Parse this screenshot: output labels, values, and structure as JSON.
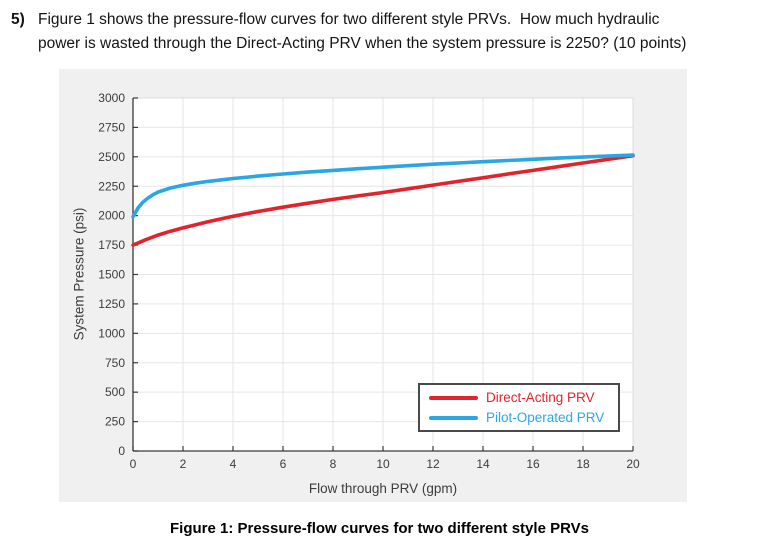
{
  "problem": {
    "number": "5)",
    "line1": "Figure 1 shows the pressure-flow curves for two different style PRVs.  How much hydraulic",
    "line2": "power is wasted through the Direct-Acting PRV when the system pressure is 2250? (10 points)"
  },
  "figure_caption": "Figure 1: Pressure-flow curves for two different style PRVs",
  "chart_data": {
    "type": "line",
    "title": "",
    "xlabel": "Flow through PRV (gpm)",
    "ylabel": "System Pressure (psi)",
    "xlim": [
      0,
      20
    ],
    "ylim": [
      0,
      3000
    ],
    "xticks": [
      0,
      2,
      4,
      6,
      8,
      10,
      12,
      14,
      16,
      18,
      20
    ],
    "yticks": [
      0,
      250,
      500,
      750,
      1000,
      1250,
      1500,
      1750,
      2000,
      2250,
      2500,
      2750,
      3000
    ],
    "grid": true,
    "legend_position": "lower-right",
    "colors": {
      "figure_background": "#F0F0F0",
      "plot_background": "#FFFFFF",
      "grid": "#E6E6E6",
      "axis": "#3A3A3A",
      "box_light": "#DCDCDC",
      "tick_label": "#3D3D3D",
      "legend_border": "#4A4A4A"
    },
    "series": [
      {
        "name": "Direct-Acting PRV",
        "color": "#E3232C",
        "x": [
          0,
          0.5,
          1,
          1.5,
          2,
          3,
          4,
          5,
          6,
          7,
          8,
          9,
          10,
          11,
          12,
          13,
          14,
          15,
          16,
          17,
          18,
          19,
          20
        ],
        "y": [
          1750,
          1795,
          1835,
          1868,
          1896,
          1948,
          1995,
          2035,
          2072,
          2106,
          2138,
          2168,
          2197,
          2228,
          2260,
          2291,
          2322,
          2354,
          2385,
          2416,
          2448,
          2479,
          2510
        ]
      },
      {
        "name": "Pilot-Operated PRV",
        "color": "#2CA6E2",
        "x": [
          0,
          0.2,
          0.4,
          0.6,
          0.8,
          1,
          1.5,
          2,
          2.5,
          3,
          4,
          5,
          6,
          7,
          8,
          9,
          10,
          11,
          12,
          13,
          14,
          15,
          16,
          17,
          18,
          19,
          20
        ],
        "y": [
          1990,
          2065,
          2115,
          2150,
          2178,
          2200,
          2235,
          2258,
          2276,
          2291,
          2316,
          2336,
          2354,
          2370,
          2385,
          2399,
          2412,
          2425,
          2437,
          2448,
          2459,
          2469,
          2479,
          2489,
          2498,
          2507,
          2515
        ]
      }
    ]
  }
}
